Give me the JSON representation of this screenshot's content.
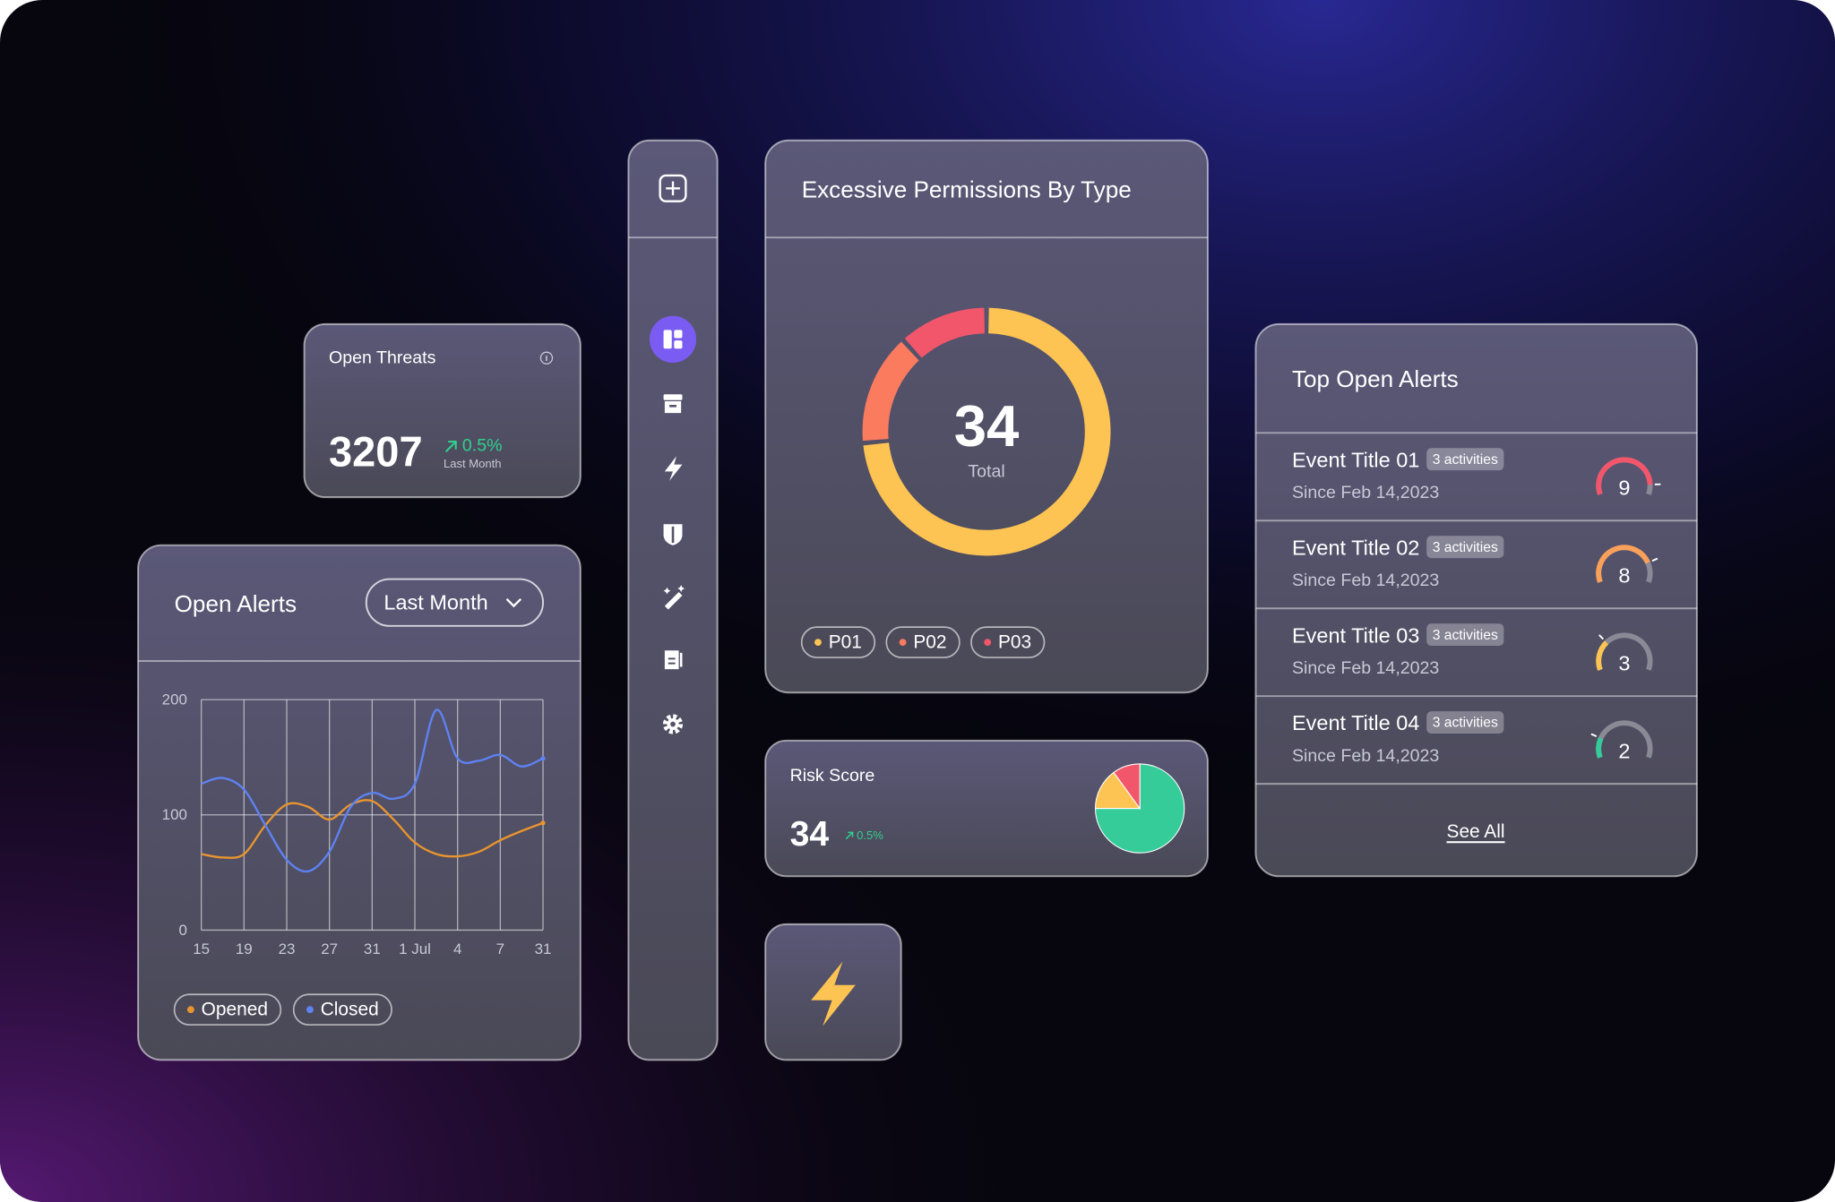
{
  "open_threats": {
    "title": "Open Threats",
    "value": 3207,
    "change": "0.5%",
    "period": "Last Month"
  },
  "chart_data": [
    {
      "type": "line",
      "title": "Open Alerts",
      "filter": "Last Month",
      "categories": [
        "15",
        null,
        "19",
        null,
        "23",
        null,
        "27",
        null,
        "31",
        null,
        "1 Jul",
        null,
        "4",
        null,
        "7",
        null,
        "31"
      ],
      "ylim": [
        0,
        200
      ],
      "yticks": [
        0,
        100,
        200
      ],
      "grid": true,
      "series": [
        {
          "name": "Opened",
          "color": "#e8952f",
          "values": [
            66,
            63,
            66,
            91,
            109,
            107,
            96,
            109,
            112,
            96,
            76,
            66,
            64,
            68,
            78,
            86,
            93
          ]
        },
        {
          "name": "Closed",
          "color": "#5e82f2",
          "values": [
            127,
            132,
            122,
            91,
            61,
            51,
            68,
            107,
            119,
            114,
            127,
            191,
            149,
            147,
            152,
            142,
            149
          ]
        }
      ]
    },
    {
      "type": "donut",
      "title": "Excessive Permissions By Type",
      "total": 34,
      "total_label": "Total",
      "categories": [
        "P01",
        "P02",
        "P03"
      ],
      "values": [
        25,
        5,
        4
      ],
      "colors": [
        "#fdc453",
        "#fb7b5f",
        "#f2566b"
      ]
    },
    {
      "type": "pie",
      "title": "Risk Score",
      "score": 34,
      "change": "0.5%",
      "values": [
        75,
        15,
        10
      ],
      "colors": [
        "#36cc9a",
        "#fdc453",
        "#f2566b"
      ]
    }
  ],
  "top_open_alerts": {
    "title": "Top Open Alerts",
    "gauge_range": [
      0,
      10
    ],
    "items": [
      {
        "title": "Event Title 01",
        "badge": "3 activities",
        "since": "Since Feb 14,2023",
        "score": 9,
        "color": "#f2566b"
      },
      {
        "title": "Event Title 02",
        "badge": "3 activities",
        "since": "Since Feb 14,2023",
        "score": 8,
        "color": "#f9a05a"
      },
      {
        "title": "Event Title 03",
        "badge": "3 activities",
        "since": "Since Feb 14,2023",
        "score": 3,
        "color": "#fdc453"
      },
      {
        "title": "Event Title 04",
        "badge": "3 activities",
        "since": "Since Feb 14,2023",
        "score": 2,
        "color": "#36cc9a"
      }
    ],
    "link": "See All"
  }
}
